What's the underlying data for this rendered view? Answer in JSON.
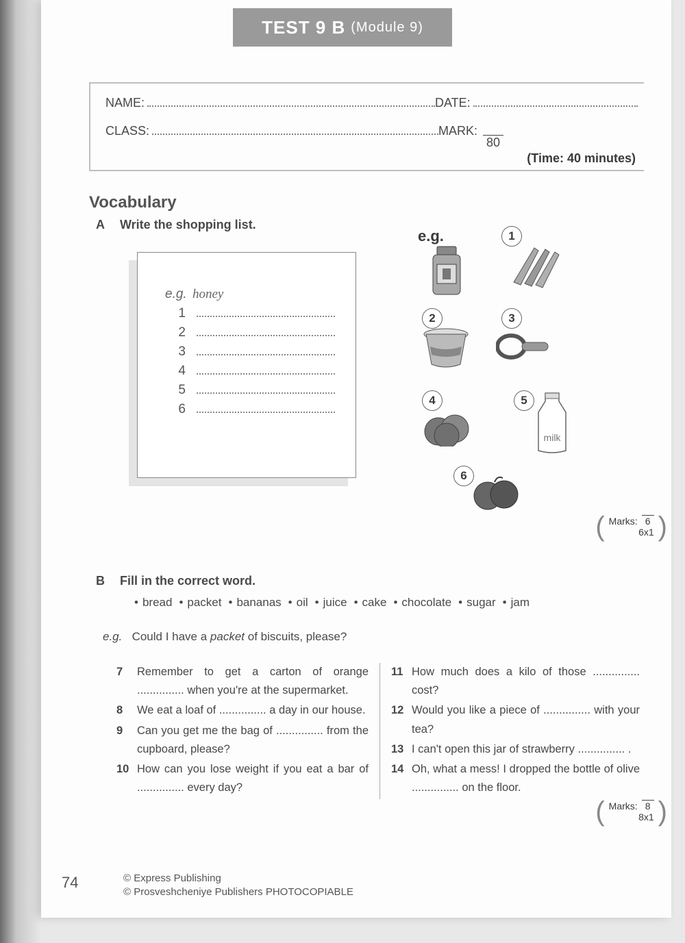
{
  "header": {
    "title_bold": "TEST 9 B",
    "title_light": "(Module 9)"
  },
  "info": {
    "name_label": "NAME:",
    "date_label": "DATE:",
    "class_label": "CLASS:",
    "mark_label": "MARK:",
    "mark_denom": "80",
    "time": "(Time: 40 minutes)"
  },
  "section_vocab": "Vocabulary",
  "partA": {
    "letter": "A",
    "instruction": "Write the shopping list.",
    "note_eg_label": "e.g.",
    "note_eg_answer": "honey",
    "lines": [
      "1",
      "2",
      "3",
      "4",
      "5",
      "6"
    ],
    "food_eg": "e.g.",
    "labels": [
      "1",
      "2",
      "3",
      "4",
      "5",
      "6"
    ],
    "milk_label": "milk",
    "marks_label": "Marks:",
    "marks_calc": "6x1",
    "marks_total": "6"
  },
  "partB": {
    "letter": "B",
    "instruction": "Fill in the correct word.",
    "words": [
      "bread",
      "packet",
      "bananas",
      "oil",
      "juice",
      "cake",
      "chocolate",
      "sugar",
      "jam"
    ],
    "eg_prefix": "e.g.",
    "eg_text_1": "Could I have a ",
    "eg_packet": "packet",
    "eg_text_2": " of biscuits, please?",
    "questions_left": [
      {
        "n": "7",
        "t": "Remember to get a carton of orange ............... when you're at the supermarket."
      },
      {
        "n": "8",
        "t": "We eat a loaf of ............... a day in our house."
      },
      {
        "n": "9",
        "t": "Can you get me the bag of ............... from the cupboard, please?"
      },
      {
        "n": "10",
        "t": "How can you lose weight if you eat a bar of ............... every day?"
      }
    ],
    "questions_right": [
      {
        "n": "11",
        "t": "How much does a kilo of those ............... cost?"
      },
      {
        "n": "12",
        "t": "Would you like a piece of ............... with your tea?"
      },
      {
        "n": "13",
        "t": "I can't open this jar of strawberry ............... ."
      },
      {
        "n": "14",
        "t": "Oh, what a mess! I dropped the bottle of olive ............... on the floor."
      }
    ],
    "marks_label": "Marks:",
    "marks_calc": "8x1",
    "marks_total": "8"
  },
  "footer": {
    "page": "74",
    "copy1": "© Express Publishing",
    "copy2": "© Prosveshcheniye Publishers PHOTOCOPIABLE"
  }
}
